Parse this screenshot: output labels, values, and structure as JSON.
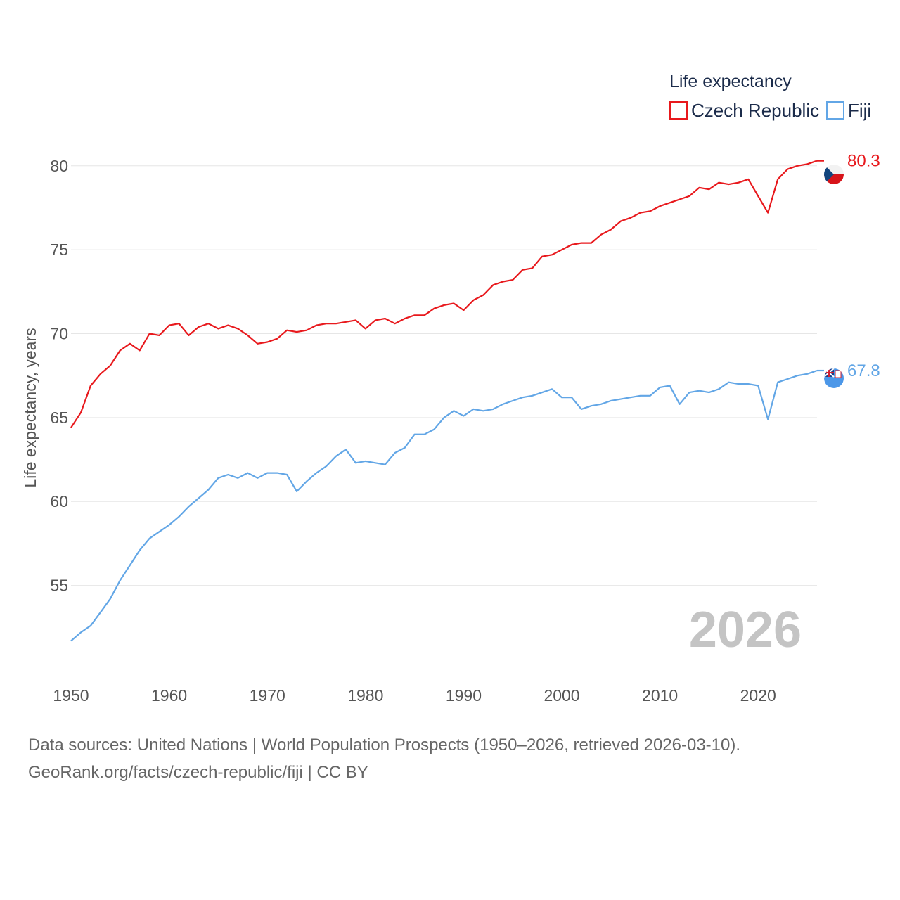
{
  "chart_data": {
    "type": "line",
    "title": "",
    "xlabel": "",
    "ylabel": "Life expectancy, years",
    "xlim": [
      1950,
      2026
    ],
    "ylim": [
      50.5,
      81.5
    ],
    "x_ticks": [
      "1950",
      "1960",
      "1970",
      "1980",
      "1990",
      "2000",
      "2010",
      "2020"
    ],
    "y_ticks": [
      "55",
      "60",
      "65",
      "70",
      "75",
      "80"
    ],
    "legend_title": "Life expectancy",
    "year_label": "2026",
    "x": [
      1950,
      1951,
      1952,
      1953,
      1954,
      1955,
      1956,
      1957,
      1958,
      1959,
      1960,
      1961,
      1962,
      1963,
      1964,
      1965,
      1966,
      1967,
      1968,
      1969,
      1970,
      1971,
      1972,
      1973,
      1974,
      1975,
      1976,
      1977,
      1978,
      1979,
      1980,
      1981,
      1982,
      1983,
      1984,
      1985,
      1986,
      1987,
      1988,
      1989,
      1990,
      1991,
      1992,
      1993,
      1994,
      1995,
      1996,
      1997,
      1998,
      1999,
      2000,
      2001,
      2002,
      2003,
      2004,
      2005,
      2006,
      2007,
      2008,
      2009,
      2010,
      2011,
      2012,
      2013,
      2014,
      2015,
      2016,
      2017,
      2018,
      2019,
      2020,
      2021,
      2022,
      2023,
      2024,
      2025,
      2026
    ],
    "series": [
      {
        "name": "Czech Republic",
        "color": "#e8191d",
        "end_label": "80.3",
        "flag_icon": "czech-flag-icon",
        "values": [
          64.4,
          65.3,
          66.9,
          67.6,
          68.1,
          69.0,
          69.4,
          69.0,
          70.0,
          69.9,
          70.5,
          70.6,
          69.9,
          70.4,
          70.6,
          70.3,
          70.5,
          70.3,
          69.9,
          69.4,
          69.5,
          69.7,
          70.2,
          70.1,
          70.2,
          70.5,
          70.6,
          70.6,
          70.7,
          70.8,
          70.3,
          70.8,
          70.9,
          70.6,
          70.9,
          71.1,
          71.1,
          71.5,
          71.7,
          71.8,
          71.4,
          72.0,
          72.3,
          72.9,
          73.1,
          73.2,
          73.8,
          73.9,
          74.6,
          74.7,
          75.0,
          75.3,
          75.4,
          75.4,
          75.9,
          76.2,
          76.7,
          76.9,
          77.2,
          77.3,
          77.6,
          77.8,
          78.0,
          78.2,
          78.7,
          78.6,
          79.0,
          78.9,
          79.0,
          79.2,
          78.2,
          77.2,
          79.2,
          79.8,
          80.0,
          80.1,
          80.3
        ]
      },
      {
        "name": "Fiji",
        "color": "#62a6e6",
        "end_label": "67.8",
        "flag_icon": "fiji-flag-icon",
        "values": [
          51.7,
          52.2,
          52.6,
          53.4,
          54.2,
          55.3,
          56.2,
          57.1,
          57.8,
          58.2,
          58.6,
          59.1,
          59.7,
          60.2,
          60.7,
          61.4,
          61.6,
          61.4,
          61.7,
          61.4,
          61.7,
          61.7,
          61.6,
          60.6,
          61.2,
          61.7,
          62.1,
          62.7,
          63.1,
          62.3,
          62.4,
          62.3,
          62.2,
          62.9,
          63.2,
          64.0,
          64.0,
          64.3,
          65.0,
          65.4,
          65.1,
          65.5,
          65.4,
          65.5,
          65.8,
          66.0,
          66.2,
          66.3,
          66.5,
          66.7,
          66.2,
          66.2,
          65.5,
          65.7,
          65.8,
          66.0,
          66.1,
          66.2,
          66.3,
          66.3,
          66.8,
          66.9,
          65.8,
          66.5,
          66.6,
          66.5,
          66.7,
          67.1,
          67.0,
          67.0,
          66.9,
          64.9,
          67.1,
          67.3,
          67.5,
          67.6,
          67.8
        ]
      }
    ]
  },
  "footer": {
    "line1": "Data sources: United Nations | World Population Prospects (1950–2026, retrieved 2026-03-10).",
    "line2": "GeoRank.org/facts/czech-republic/fiji | CC BY"
  }
}
